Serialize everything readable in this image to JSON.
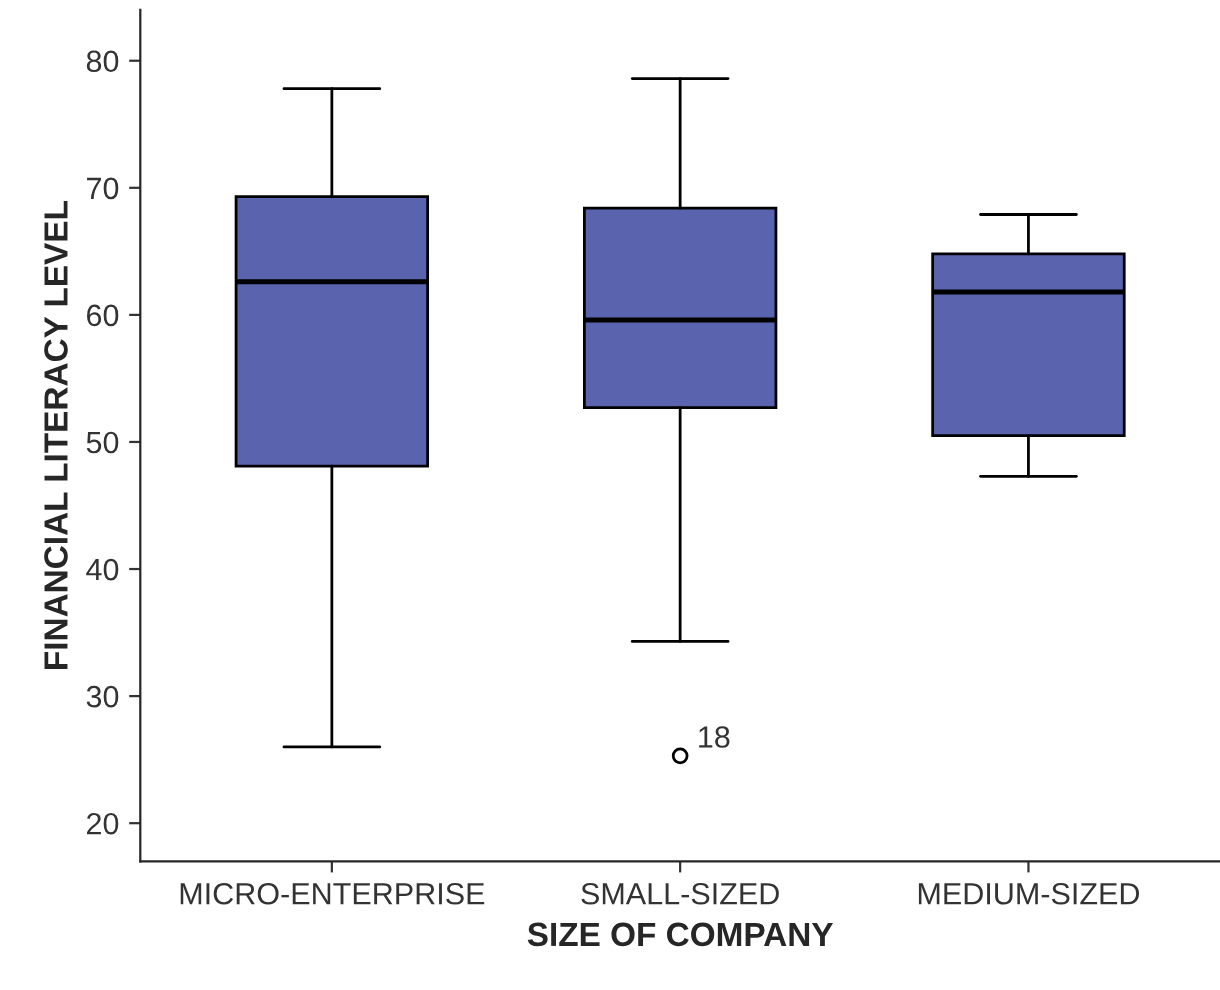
{
  "chart_data": {
    "type": "box",
    "xlabel": "SIZE OF COMPANY",
    "ylabel": "FINANCIAL LITERACY LEVEL",
    "categories": [
      "MICRO-ENTERPRISE",
      "SMALL-SIZED",
      "MEDIUM-SIZED"
    ],
    "boxes": [
      {
        "low": 26.0,
        "q1": 48.1,
        "median": 62.6,
        "q3": 69.3,
        "high": 77.8
      },
      {
        "low": 34.3,
        "q1": 52.7,
        "median": 59.6,
        "q3": 68.4,
        "high": 78.6,
        "outliers": [
          25.3
        ]
      },
      {
        "low": 47.3,
        "q1": 50.5,
        "median": 61.8,
        "q3": 64.8,
        "high": 67.9
      }
    ],
    "color": "#5a64ae",
    "annotations": [
      "18"
    ],
    "ylim": [
      17,
      84
    ],
    "yticks": [
      20,
      30,
      40,
      50,
      60,
      70,
      80
    ],
    "grid": false,
    "legend": false
  }
}
